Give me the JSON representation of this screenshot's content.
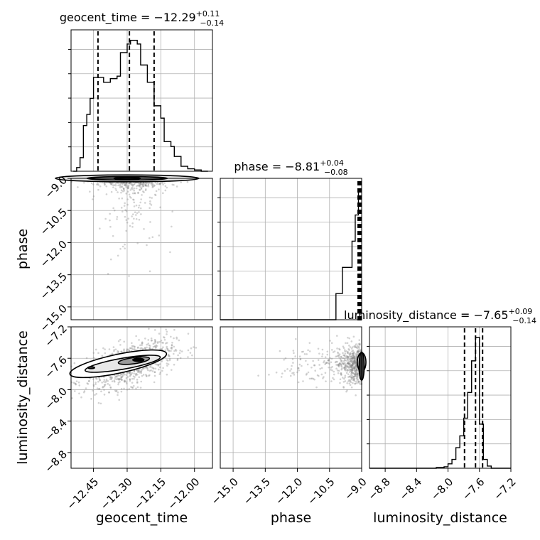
{
  "chart_data": {
    "type": "corner",
    "parameters": [
      "geocent_time",
      "phase",
      "luminosity_distance"
    ],
    "titles": [
      {
        "param": "geocent_time",
        "prefix": "geocent_time = ",
        "median": "−12.29",
        "plus": "+0.11",
        "minus": "−0.14"
      },
      {
        "param": "phase",
        "prefix": "phase = ",
        "median": "−8.81",
        "plus": "+0.04",
        "minus": "−0.08"
      },
      {
        "param": "luminosity_distance",
        "prefix": "luminosity_distance = ",
        "median": "−7.65",
        "plus": "+0.09",
        "minus": "−0.14"
      }
    ],
    "axes": {
      "geocent_time": {
        "range": [
          -12.55,
          -11.92
        ],
        "ticks": [
          -12.45,
          -12.3,
          -12.15,
          -12.0
        ],
        "tick_labels": [
          "−12.45",
          "−12.30",
          "−12.15",
          "−12.00"
        ],
        "label": "geocent_time"
      },
      "phase": {
        "range": [
          -15.6,
          -9.0
        ],
        "ticks": [
          -15.0,
          -13.5,
          -12.0,
          -10.5,
          -9.0
        ],
        "tick_labels": [
          "−15.0",
          "−13.5",
          "−12.0",
          "−10.5",
          "−9.0"
        ],
        "label": "phase"
      },
      "luminosity_distance": {
        "range": [
          -9.0,
          -7.2
        ],
        "ticks": [
          -8.8,
          -8.4,
          -8.0,
          -7.6,
          -7.2
        ],
        "tick_labels": [
          "−8.8",
          "−8.4",
          "−8.0",
          "−7.6",
          "−7.2"
        ],
        "label": "luminosity_distance"
      }
    },
    "histograms": {
      "geocent_time": {
        "edges": [
          -12.54,
          -12.525,
          -12.51,
          -12.495,
          -12.48,
          -12.465,
          -12.45,
          -12.435,
          -12.42,
          -12.405,
          -12.39,
          -12.375,
          -12.36,
          -12.345,
          -12.33,
          -12.315,
          -12.3,
          -12.285,
          -12.27,
          -12.255,
          -12.24,
          -12.225,
          -12.21,
          -12.195,
          -12.18,
          -12.165,
          -12.15,
          -12.135,
          -12.12,
          -12.105,
          -12.09,
          -12.075,
          -12.06,
          -12.045,
          -12.03,
          -12.015,
          -12.0,
          -11.985,
          -11.97,
          -11.955,
          -11.94
        ],
        "counts": [
          0,
          3,
          11,
          37,
          46,
          59,
          76,
          76,
          76,
          72,
          72,
          75,
          75,
          77,
          96,
          96,
          103,
          106,
          106,
          103,
          86,
          86,
          72,
          72,
          53,
          53,
          43,
          24,
          24,
          20,
          12,
          12,
          4,
          4,
          2,
          2,
          1,
          1,
          0,
          0
        ]
      },
      "phase": {
        "edges": [
          -15.6,
          -15.45,
          -15.3,
          -15.15,
          -15.0,
          -14.85,
          -14.7,
          -14.55,
          -14.4,
          -14.25,
          -14.1,
          -13.95,
          -13.8,
          -13.65,
          -13.5,
          -13.35,
          -13.2,
          -13.05,
          -12.9,
          -12.75,
          -12.6,
          -12.45,
          -12.3,
          -12.15,
          -12.0,
          -11.85,
          -11.7,
          -11.55,
          -11.4,
          -11.25,
          -11.1,
          -10.95,
          -10.8,
          -10.65,
          -10.5,
          -10.35,
          -10.2,
          -10.05,
          -9.9,
          -9.75,
          -9.6,
          -9.45,
          -9.3,
          -9.15,
          -9.0
        ],
        "counts": [
          0,
          0,
          0,
          0,
          0,
          0,
          0,
          0,
          0,
          0,
          0,
          0,
          0,
          0,
          0,
          0,
          0,
          0,
          0,
          0,
          0,
          0,
          0,
          0,
          0,
          0,
          0,
          0,
          0,
          0,
          0,
          0,
          0,
          0,
          0,
          0,
          1,
          1,
          2,
          2,
          2,
          3,
          4,
          5
        ]
      },
      "luminosity_distance": {
        "edges": [
          -9.0,
          -8.95,
          -8.9,
          -8.85,
          -8.8,
          -8.75,
          -8.7,
          -8.65,
          -8.6,
          -8.55,
          -8.5,
          -8.45,
          -8.4,
          -8.35,
          -8.3,
          -8.25,
          -8.2,
          -8.15,
          -8.1,
          -8.05,
          -8.0,
          -7.95,
          -7.9,
          -7.85,
          -7.8,
          -7.75,
          -7.7,
          -7.65,
          -7.6,
          -7.55,
          -7.5,
          -7.45,
          -7.4,
          -7.35,
          -7.3,
          -7.25,
          -7.2
        ],
        "counts": [
          0,
          0,
          0,
          0,
          0,
          0,
          0,
          0,
          0,
          0,
          0,
          0,
          0,
          0,
          0,
          0,
          0,
          1,
          1,
          2,
          6,
          12,
          28,
          44,
          68,
          103,
          146,
          178,
          60,
          12,
          3,
          0,
          0,
          0,
          0,
          0
        ]
      }
    },
    "quantiles": {
      "geocent_time": [
        -12.43,
        -12.29,
        -12.18
      ],
      "phase": [
        -8.89,
        -8.81,
        -8.77
      ],
      "luminosity_distance": [
        -7.79,
        -7.65,
        -7.56
      ]
    },
    "grid": true
  }
}
